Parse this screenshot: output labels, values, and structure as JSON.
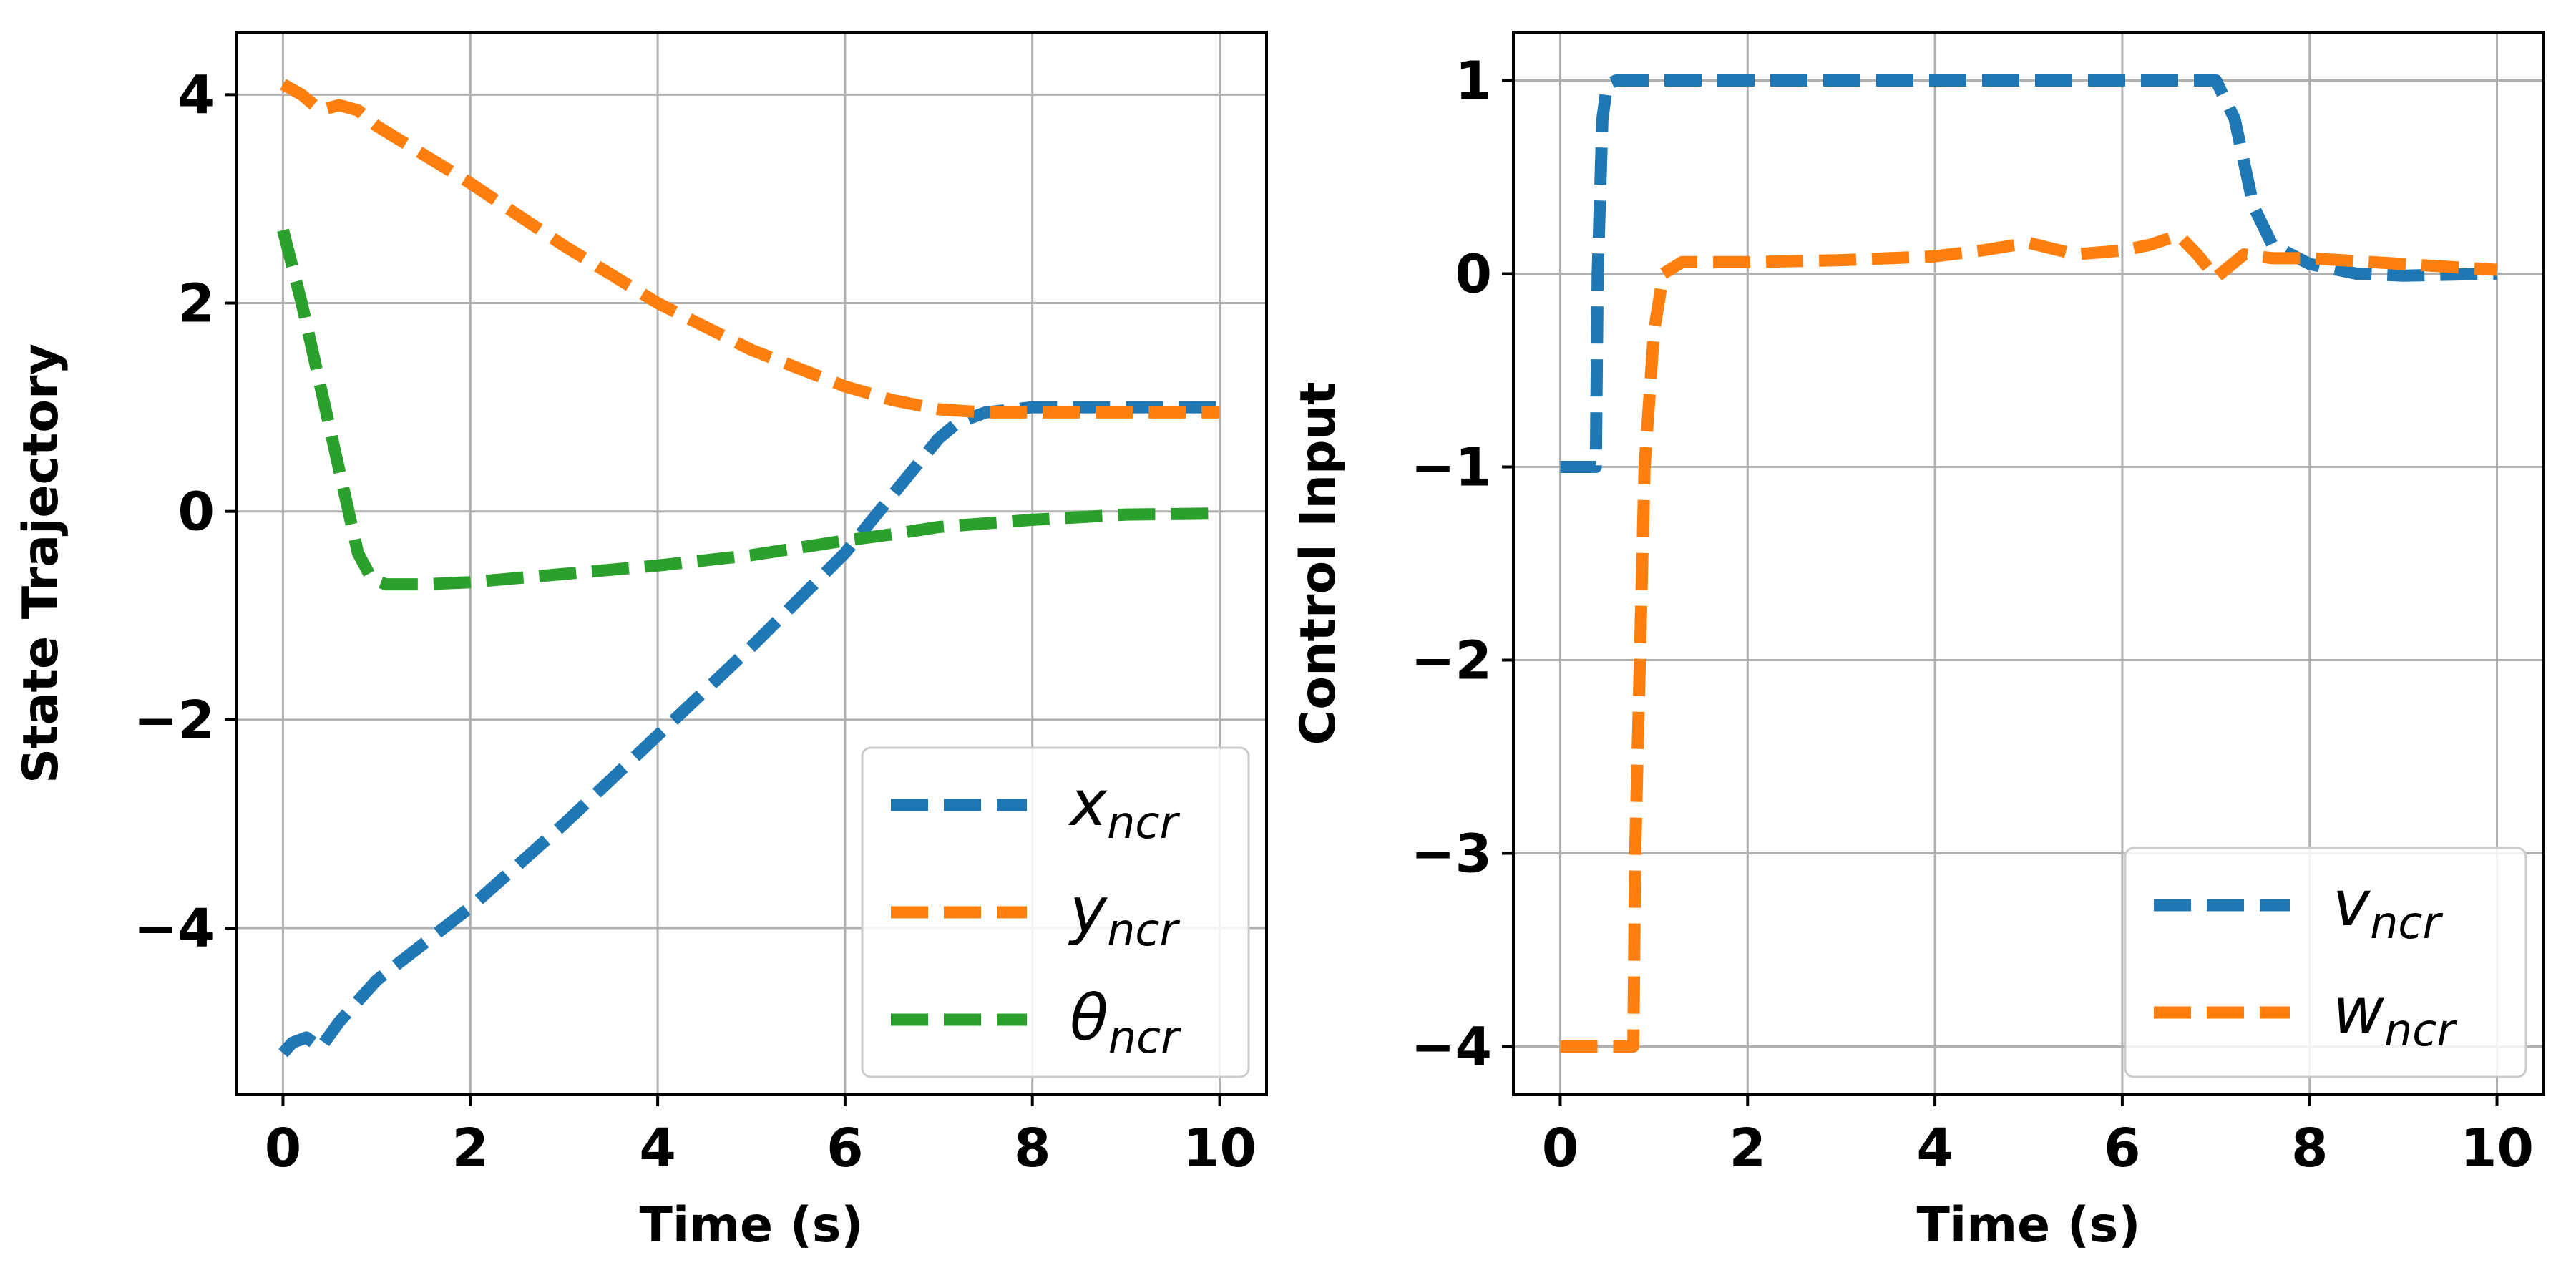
{
  "chart_data": [
    {
      "type": "line",
      "id": "state",
      "xlabel": "Time (s)",
      "ylabel": "State Trajectory",
      "xlim": [
        -0.5,
        10.5
      ],
      "ylim": [
        -5.6,
        4.6
      ],
      "xticks": [
        0,
        2,
        4,
        6,
        8,
        10
      ],
      "yticks": [
        -4,
        -2,
        0,
        2,
        4
      ],
      "grid": true,
      "legend_position": "lower-right",
      "series": [
        {
          "name": "x",
          "sub": "ncr",
          "color": "#1f77b4",
          "x": [
            0,
            0.1,
            0.25,
            0.4,
            0.6,
            1,
            2,
            3,
            4,
            5,
            6,
            6.5,
            7,
            7.2,
            7.5,
            8,
            9,
            10
          ],
          "y": [
            -5.2,
            -5.1,
            -5.05,
            -5.15,
            -4.9,
            -4.5,
            -3.8,
            -3.0,
            -2.15,
            -1.3,
            -0.4,
            0.15,
            0.7,
            0.85,
            0.95,
            1.0,
            1.0,
            1.0
          ]
        },
        {
          "name": "y",
          "sub": "ncr",
          "color": "#ff7f0e",
          "x": [
            0,
            0.2,
            0.4,
            0.6,
            0.8,
            1,
            2,
            3,
            4,
            5,
            6,
            6.5,
            7,
            7.5,
            8,
            9,
            10
          ],
          "y": [
            4.1,
            4.0,
            3.85,
            3.9,
            3.85,
            3.7,
            3.15,
            2.55,
            2.0,
            1.55,
            1.2,
            1.07,
            0.98,
            0.95,
            0.95,
            0.95,
            0.95
          ]
        },
        {
          "name": "θ",
          "sub": "ncr",
          "color": "#2ca02c",
          "x": [
            0,
            0.2,
            0.5,
            0.8,
            0.95,
            1.1,
            1.5,
            2,
            3,
            4,
            5,
            6,
            6.5,
            7,
            8,
            9,
            10
          ],
          "y": [
            2.7,
            2.0,
            0.8,
            -0.4,
            -0.65,
            -0.7,
            -0.7,
            -0.68,
            -0.6,
            -0.52,
            -0.42,
            -0.28,
            -0.22,
            -0.15,
            -0.08,
            -0.03,
            -0.02
          ]
        }
      ]
    },
    {
      "type": "line",
      "id": "control",
      "xlabel": "Time (s)",
      "ylabel": "Control Input",
      "xlim": [
        -0.5,
        10.5
      ],
      "ylim": [
        -4.25,
        1.25
      ],
      "xticks": [
        0,
        2,
        4,
        6,
        8,
        10
      ],
      "yticks": [
        -4,
        -3,
        -2,
        -1,
        0,
        1
      ],
      "grid": true,
      "legend_position": "lower-right",
      "series": [
        {
          "name": "v",
          "sub": "ncr",
          "color": "#1f77b4",
          "x": [
            0,
            0.38,
            0.4,
            0.45,
            0.5,
            0.6,
            7.0,
            7.2,
            7.4,
            7.6,
            8.0,
            8.5,
            9.0,
            10.0
          ],
          "y": [
            -1.0,
            -1.0,
            0.0,
            0.8,
            0.98,
            1.0,
            1.0,
            0.8,
            0.35,
            0.15,
            0.05,
            0.0,
            -0.01,
            0.0
          ]
        },
        {
          "name": "w",
          "sub": "ncr",
          "color": "#ff7f0e",
          "x": [
            0,
            0.78,
            0.8,
            0.85,
            0.9,
            1.0,
            1.1,
            1.3,
            2,
            3,
            4,
            4.5,
            5,
            5.5,
            6,
            6.3,
            6.6,
            6.8,
            7.0,
            7.3,
            7.6,
            8,
            9,
            10
          ],
          "y": [
            -4.0,
            -4.0,
            -3.0,
            -2.0,
            -1.0,
            -0.3,
            0.0,
            0.06,
            0.06,
            0.07,
            0.09,
            0.12,
            0.16,
            0.1,
            0.12,
            0.15,
            0.2,
            0.1,
            -0.02,
            0.1,
            0.08,
            0.08,
            0.05,
            0.02
          ]
        }
      ]
    }
  ]
}
